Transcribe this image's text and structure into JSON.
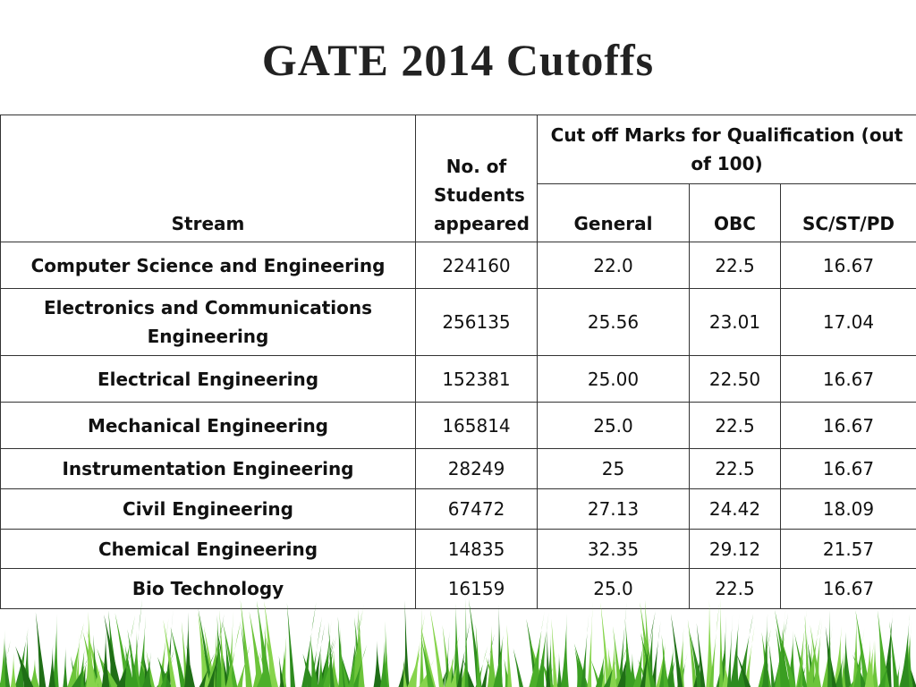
{
  "title": "GATE 2014 Cutoffs",
  "table": {
    "header": {
      "stream": "Stream",
      "students": "No. of Students appeared",
      "cutoff_group": "Cut off Marks for Qualification (out of 100)",
      "general": "General",
      "obc": "OBC",
      "sc_st_pd": "SC/ST/PD"
    },
    "rows": [
      [
        "Computer Science and Engineering",
        "224160",
        "22.0",
        "22.5",
        "16.67"
      ],
      [
        "Electronics and Communications Engineering",
        "256135",
        "25.56",
        "23.01",
        "17.04"
      ],
      [
        "Electrical Engineering",
        "152381",
        "25.00",
        "22.50",
        "16.67"
      ],
      [
        "Mechanical Engineering",
        "165814",
        "25.0",
        "22.5",
        "16.67"
      ],
      [
        "Instrumentation Engineering",
        "28249",
        "25",
        "22.5",
        "16.67"
      ],
      [
        "Civil Engineering",
        "67472",
        "27.13",
        "24.42",
        "18.09"
      ],
      [
        "Chemical Engineering",
        "14835",
        "32.35",
        "29.12",
        "21.57"
      ],
      [
        "Bio Technology",
        "16159",
        "25.0",
        "22.5",
        "16.67"
      ]
    ]
  }
}
